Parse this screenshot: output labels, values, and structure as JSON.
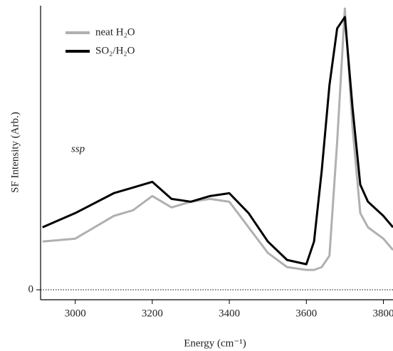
{
  "chart_data": {
    "type": "line",
    "xlabel": "Energy (cm⁻¹)",
    "ylabel": "SF Intensity (Arb.)",
    "annotation": "ssp",
    "xlim": [
      2910,
      3825
    ],
    "xticks": [
      3000,
      3200,
      3400,
      3600,
      3800
    ],
    "ylim": [
      -0.035,
      1.0
    ],
    "yticks": [
      0
    ],
    "legend": "upper left",
    "x": [
      2915,
      3000,
      3100,
      3150,
      3200,
      3250,
      3300,
      3350,
      3400,
      3450,
      3500,
      3550,
      3600,
      3620,
      3640,
      3660,
      3680,
      3700,
      3720,
      3740,
      3760,
      3800,
      3825
    ],
    "series": [
      {
        "name": "neat H₂O",
        "color": "#b0b0b0",
        "values": [
          0.17,
          0.18,
          0.26,
          0.28,
          0.33,
          0.29,
          0.31,
          0.32,
          0.31,
          0.22,
          0.13,
          0.08,
          0.07,
          0.07,
          0.08,
          0.12,
          0.52,
          0.99,
          0.57,
          0.27,
          0.22,
          0.18,
          0.14
        ]
      },
      {
        "name": "SO₂/H₂O",
        "color": "#000000",
        "values": [
          0.22,
          0.27,
          0.34,
          0.36,
          0.38,
          0.32,
          0.31,
          0.33,
          0.34,
          0.27,
          0.17,
          0.105,
          0.09,
          0.17,
          0.42,
          0.72,
          0.92,
          0.96,
          0.64,
          0.37,
          0.31,
          0.26,
          0.22
        ]
      }
    ]
  }
}
